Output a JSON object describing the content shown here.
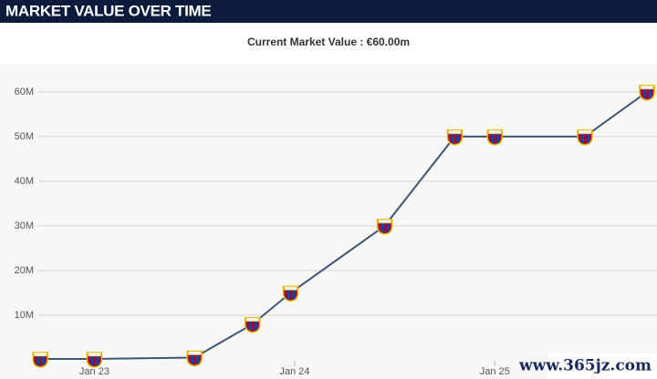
{
  "header": "MARKET VALUE OVER TIME",
  "chart_data": {
    "type": "line",
    "title": "Current Market Value : €60.00m",
    "x": [
      22.73,
      23.0,
      23.5,
      23.79,
      23.98,
      24.45,
      24.8,
      25.0,
      25.45,
      25.76
    ],
    "series": [
      {
        "name": "Market value",
        "color": "#3e5673",
        "values": [
          0.2,
          0.2,
          0.5,
          8,
          15,
          30,
          50,
          50,
          50,
          60
        ]
      }
    ],
    "xlim": [
      22.72,
      25.81
    ],
    "xticks": [
      {
        "value": 23,
        "label": "Jan 23"
      },
      {
        "value": 24,
        "label": "Jan 24"
      },
      {
        "value": 25,
        "label": "Jan 25"
      }
    ],
    "ylim": [
      -4.3,
      66.3
    ],
    "yticks": [
      {
        "value": 10,
        "label": "10M"
      },
      {
        "value": 20,
        "label": "20M"
      },
      {
        "value": 30,
        "label": "30M"
      },
      {
        "value": 40,
        "label": "40M"
      },
      {
        "value": 50,
        "label": "50M"
      },
      {
        "value": 60,
        "label": "60M"
      }
    ],
    "grid": true,
    "watermark": "www.365jz.com"
  }
}
